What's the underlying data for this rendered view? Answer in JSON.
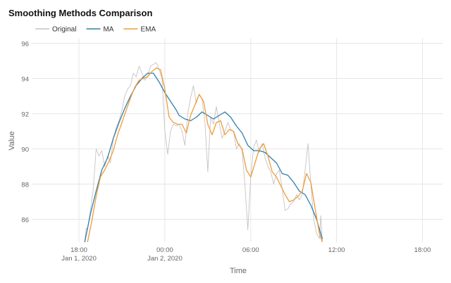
{
  "chart_data": {
    "type": "line",
    "title": "Smoothing Methods Comparison",
    "xlabel": "Time",
    "ylabel": "Value",
    "x_ticks": [
      {
        "time_h": 18,
        "label": "18:00",
        "sublabel": "Jan 1, 2020"
      },
      {
        "time_h": 24,
        "label": "00:00",
        "sublabel": "Jan 2, 2020"
      },
      {
        "time_h": 30,
        "label": "06:00",
        "sublabel": ""
      },
      {
        "time_h": 36,
        "label": "12:00",
        "sublabel": ""
      },
      {
        "time_h": 42,
        "label": "18:00",
        "sublabel": ""
      }
    ],
    "y_ticks": [
      86,
      88,
      90,
      92,
      94,
      96
    ],
    "xlim_hours": [
      14.7,
      43.4
    ],
    "ylim": [
      84.7,
      96.3
    ],
    "x_unit": "hours from Jan 1, 2020 00:00",
    "grid": true,
    "legend_position": "top-left",
    "series": [
      {
        "name": "Original",
        "color": "#c4c4c4",
        "points": [
          [
            18.4,
            84.7
          ],
          [
            18.5,
            85.5
          ],
          [
            18.6,
            85.4
          ],
          [
            18.8,
            86.5
          ],
          [
            19.0,
            87.7
          ],
          [
            19.2,
            90.0
          ],
          [
            19.4,
            89.6
          ],
          [
            19.6,
            89.9
          ],
          [
            19.8,
            89.0
          ],
          [
            20.0,
            89.6
          ],
          [
            20.2,
            89.2
          ],
          [
            20.4,
            90.6
          ],
          [
            20.6,
            91.2
          ],
          [
            20.8,
            91.6
          ],
          [
            21.0,
            92.2
          ],
          [
            21.2,
            93.0
          ],
          [
            21.4,
            93.4
          ],
          [
            21.6,
            93.6
          ],
          [
            21.8,
            94.3
          ],
          [
            22.0,
            94.1
          ],
          [
            22.2,
            94.7
          ],
          [
            22.4,
            94.3
          ],
          [
            22.6,
            93.9
          ],
          [
            22.8,
            94.1
          ],
          [
            23.0,
            94.7
          ],
          [
            23.2,
            94.8
          ],
          [
            23.4,
            94.9
          ],
          [
            23.6,
            94.5
          ],
          [
            23.8,
            94.0
          ],
          [
            24.0,
            91.0
          ],
          [
            24.2,
            89.7
          ],
          [
            24.4,
            91.0
          ],
          [
            24.6,
            91.4
          ],
          [
            24.8,
            91.3
          ],
          [
            25.0,
            91.4
          ],
          [
            25.2,
            91.0
          ],
          [
            25.4,
            90.2
          ],
          [
            25.6,
            92.0
          ],
          [
            25.8,
            92.9
          ],
          [
            26.0,
            93.6
          ],
          [
            26.2,
            92.6
          ],
          [
            26.4,
            93.1
          ],
          [
            26.6,
            92.8
          ],
          [
            26.8,
            91.5
          ],
          [
            27.0,
            88.7
          ],
          [
            27.2,
            91.8
          ],
          [
            27.4,
            91.4
          ],
          [
            27.6,
            92.4
          ],
          [
            27.8,
            91.5
          ],
          [
            28.0,
            90.6
          ],
          [
            28.2,
            91.0
          ],
          [
            28.4,
            91.5
          ],
          [
            28.6,
            91.1
          ],
          [
            28.8,
            91.0
          ],
          [
            29.0,
            90.0
          ],
          [
            29.2,
            90.3
          ],
          [
            29.4,
            89.9
          ],
          [
            29.6,
            87.9
          ],
          [
            29.8,
            85.4
          ],
          [
            30.0,
            88.4
          ],
          [
            30.2,
            90.1
          ],
          [
            30.4,
            90.5
          ],
          [
            30.6,
            89.8
          ],
          [
            30.8,
            90.3
          ],
          [
            31.0,
            89.5
          ],
          [
            31.2,
            89.0
          ],
          [
            31.4,
            88.7
          ],
          [
            31.6,
            88.0
          ],
          [
            31.8,
            88.6
          ],
          [
            32.0,
            88.8
          ],
          [
            32.2,
            87.7
          ],
          [
            32.4,
            86.5
          ],
          [
            32.6,
            86.6
          ],
          [
            32.8,
            86.9
          ],
          [
            33.0,
            87.0
          ],
          [
            33.2,
            87.4
          ],
          [
            33.4,
            87.1
          ],
          [
            33.6,
            87.4
          ],
          [
            33.8,
            88.8
          ],
          [
            34.0,
            90.3
          ],
          [
            34.2,
            88.0
          ],
          [
            34.4,
            86.0
          ],
          [
            34.6,
            85.2
          ],
          [
            34.8,
            84.9
          ],
          [
            34.9,
            86.2
          ],
          [
            35.0,
            84.7
          ]
        ]
      },
      {
        "name": "MA",
        "color": "#2f7fab",
        "points": [
          [
            18.4,
            84.7
          ],
          [
            18.8,
            86.3
          ],
          [
            19.2,
            87.6
          ],
          [
            19.6,
            88.8
          ],
          [
            20.0,
            89.5
          ],
          [
            20.4,
            90.6
          ],
          [
            20.8,
            91.5
          ],
          [
            21.2,
            92.3
          ],
          [
            21.6,
            93.0
          ],
          [
            22.0,
            93.6
          ],
          [
            22.4,
            94.0
          ],
          [
            22.8,
            94.3
          ],
          [
            23.2,
            94.3
          ],
          [
            23.6,
            93.8
          ],
          [
            24.0,
            93.2
          ],
          [
            24.4,
            92.7
          ],
          [
            24.8,
            92.2
          ],
          [
            25.0,
            91.9
          ],
          [
            25.4,
            91.7
          ],
          [
            25.8,
            91.6
          ],
          [
            26.2,
            91.8
          ],
          [
            26.6,
            92.1
          ],
          [
            27.0,
            91.9
          ],
          [
            27.4,
            91.7
          ],
          [
            27.8,
            91.9
          ],
          [
            28.2,
            92.1
          ],
          [
            28.6,
            91.8
          ],
          [
            29.0,
            91.3
          ],
          [
            29.4,
            90.9
          ],
          [
            29.8,
            90.2
          ],
          [
            30.2,
            89.9
          ],
          [
            30.6,
            89.9
          ],
          [
            31.0,
            89.8
          ],
          [
            31.4,
            89.5
          ],
          [
            31.8,
            89.2
          ],
          [
            32.2,
            88.6
          ],
          [
            32.6,
            88.5
          ],
          [
            33.0,
            88.1
          ],
          [
            33.4,
            87.6
          ],
          [
            33.8,
            87.4
          ],
          [
            34.2,
            86.8
          ],
          [
            34.6,
            86.0
          ],
          [
            35.0,
            84.9
          ]
        ]
      },
      {
        "name": "EMA",
        "color": "#f09c38",
        "points": [
          [
            18.6,
            84.7
          ],
          [
            18.9,
            85.9
          ],
          [
            19.2,
            87.3
          ],
          [
            19.5,
            88.4
          ],
          [
            19.8,
            88.8
          ],
          [
            20.1,
            89.3
          ],
          [
            20.4,
            89.9
          ],
          [
            20.7,
            90.8
          ],
          [
            21.0,
            91.5
          ],
          [
            21.3,
            92.2
          ],
          [
            21.6,
            92.9
          ],
          [
            21.9,
            93.5
          ],
          [
            22.2,
            93.9
          ],
          [
            22.5,
            94.0
          ],
          [
            22.8,
            94.1
          ],
          [
            23.1,
            94.4
          ],
          [
            23.4,
            94.6
          ],
          [
            23.7,
            94.5
          ],
          [
            24.0,
            93.4
          ],
          [
            24.3,
            91.8
          ],
          [
            24.6,
            91.5
          ],
          [
            24.9,
            91.4
          ],
          [
            25.2,
            91.4
          ],
          [
            25.5,
            90.9
          ],
          [
            25.8,
            91.9
          ],
          [
            26.1,
            92.5
          ],
          [
            26.4,
            93.1
          ],
          [
            26.7,
            92.7
          ],
          [
            27.0,
            91.4
          ],
          [
            27.3,
            90.8
          ],
          [
            27.6,
            91.5
          ],
          [
            27.9,
            91.6
          ],
          [
            28.2,
            90.8
          ],
          [
            28.5,
            91.1
          ],
          [
            28.8,
            91.0
          ],
          [
            29.1,
            90.3
          ],
          [
            29.4,
            90.0
          ],
          [
            29.7,
            88.8
          ],
          [
            30.0,
            88.4
          ],
          [
            30.3,
            89.2
          ],
          [
            30.6,
            90.0
          ],
          [
            30.9,
            90.3
          ],
          [
            31.2,
            89.6
          ],
          [
            31.5,
            88.7
          ],
          [
            31.8,
            88.4
          ],
          [
            32.1,
            87.9
          ],
          [
            32.4,
            87.4
          ],
          [
            32.7,
            87.0
          ],
          [
            33.0,
            87.1
          ],
          [
            33.3,
            87.3
          ],
          [
            33.6,
            87.6
          ],
          [
            33.9,
            88.6
          ],
          [
            34.2,
            88.1
          ],
          [
            34.5,
            86.6
          ],
          [
            34.8,
            85.2
          ],
          [
            35.0,
            84.7
          ]
        ]
      }
    ]
  }
}
